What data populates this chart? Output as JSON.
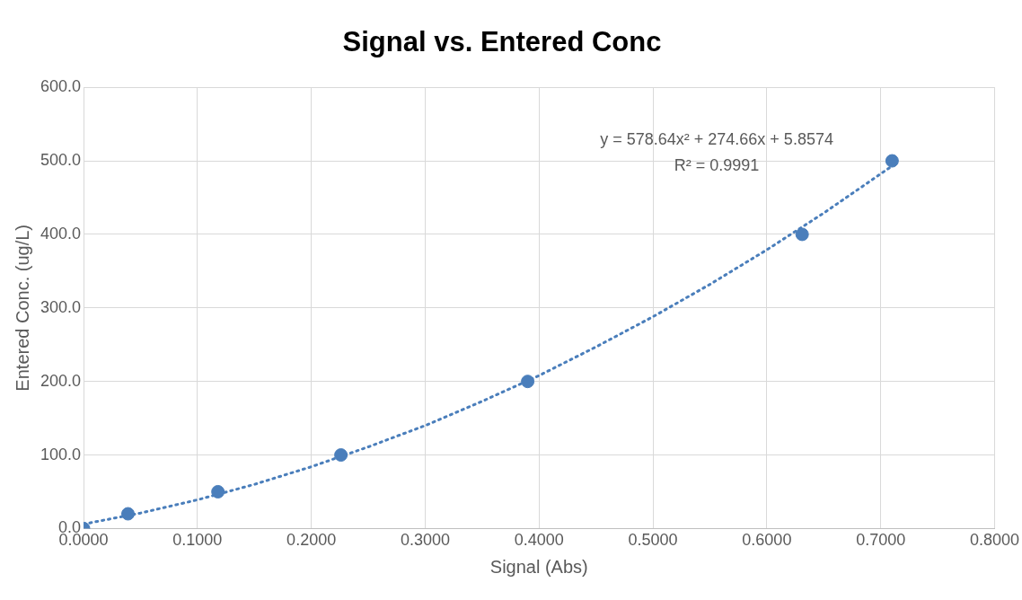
{
  "chart_data": {
    "type": "scatter",
    "title": "Signal vs. Entered Conc",
    "xlabel": "Signal (Abs)",
    "ylabel": "Entered Conc. (ug/L)",
    "series": [
      {
        "type": "scatter",
        "color": "#4a7ebb",
        "marker": "circle",
        "x": [
          0,
          0.039,
          0.118,
          0.226,
          0.39,
          0.631,
          0.71
        ],
        "values": [
          0,
          20,
          50,
          100,
          200,
          400,
          500
        ]
      },
      {
        "type": "line",
        "color": "#4a7ebb",
        "marker": "none",
        "line_style": "dotted",
        "x": [
          0,
          0.05,
          0.1,
          0.15,
          0.2,
          0.25,
          0.3,
          0.35,
          0.4,
          0.45,
          0.5,
          0.55,
          0.6,
          0.65,
          0.71
        ],
        "values": [
          6,
          21,
          39,
          60,
          84,
          111,
          140,
          173,
          208,
          247,
          288,
          332,
          379,
          429,
          493
        ]
      }
    ],
    "annotations": [
      "y = 578.64x² + 274.66x + 5.8574",
      "R² = 0.9991"
    ],
    "xlim": [
      0,
      0.8
    ],
    "xticks": [
      {
        "value": 0,
        "label": "0.0000"
      },
      {
        "value": 0.1,
        "label": "0.1000"
      },
      {
        "value": 0.2,
        "label": "0.2000"
      },
      {
        "value": 0.3,
        "label": "0.3000"
      },
      {
        "value": 0.4,
        "label": "0.4000"
      },
      {
        "value": 0.5,
        "label": "0.5000"
      },
      {
        "value": 0.6,
        "label": "0.6000"
      },
      {
        "value": 0.7,
        "label": "0.7000"
      },
      {
        "value": 0.8,
        "label": "0.8000"
      }
    ],
    "ylim": [
      0,
      600
    ],
    "yticks": [
      {
        "value": 0,
        "label": "0.0"
      },
      {
        "value": 100,
        "label": "100.0"
      },
      {
        "value": 200,
        "label": "200.0"
      },
      {
        "value": 300,
        "label": "300.0"
      },
      {
        "value": 400,
        "label": "400.0"
      },
      {
        "value": 500,
        "label": "500.0"
      },
      {
        "value": 600,
        "label": "600.0"
      }
    ],
    "grid": true,
    "legend": false
  }
}
